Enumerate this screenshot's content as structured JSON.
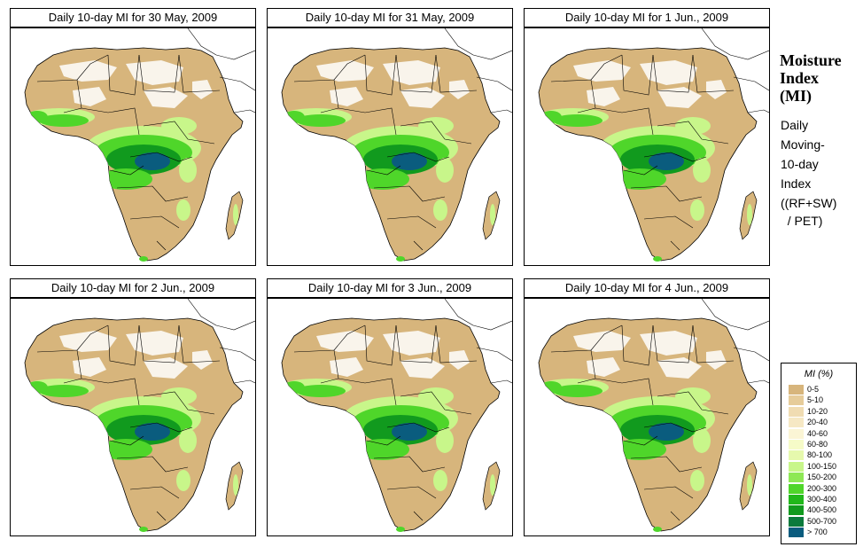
{
  "panels": [
    {
      "title": "Daily 10-day MI for  30 May, 2009"
    },
    {
      "title": "Daily 10-day MI for  31 May, 2009"
    },
    {
      "title": "Daily 10-day MI for  1 Jun., 2009"
    },
    {
      "title": "Daily 10-day MI for  2 Jun., 2009"
    },
    {
      "title": "Daily 10-day MI for  3 Jun., 2009"
    },
    {
      "title": "Daily 10-day MI for  4 Jun., 2009"
    }
  ],
  "side": {
    "title_lines": [
      "Moisture",
      "Index",
      "(MI)"
    ],
    "desc_lines": [
      "Daily",
      "Moving-",
      "10-day",
      "Index"
    ],
    "formula_lines": [
      "((RF+SW)",
      "  / PET)"
    ]
  },
  "legend": {
    "title": "MI (%)",
    "items": [
      {
        "label": "0-5",
        "color": "#d7b57c"
      },
      {
        "label": "5-10",
        "color": "#e6cc9a"
      },
      {
        "label": "10-20",
        "color": "#f0dcb2"
      },
      {
        "label": "20-40",
        "color": "#f6e8c4"
      },
      {
        "label": "40-60",
        "color": "#fbf5d5"
      },
      {
        "label": "60-80",
        "color": "#f6fbc8"
      },
      {
        "label": "80-100",
        "color": "#e6f9ad"
      },
      {
        "label": "100-150",
        "color": "#c8f68a"
      },
      {
        "label": "150-200",
        "color": "#8ee855"
      },
      {
        "label": "200-300",
        "color": "#4fd62a"
      },
      {
        "label": "300-400",
        "color": "#20b81a"
      },
      {
        "label": "400-500",
        "color": "#119a1e"
      },
      {
        "label": "500-700",
        "color": "#0b7a3c"
      },
      {
        "label": "> 700",
        "color": "#0a5c7e"
      }
    ]
  },
  "map_colors": {
    "land_dry": "#d7b57c",
    "desert_white": "#ffffff",
    "ocean": "#ffffff",
    "green_light": "#c8f68a",
    "green_mid": "#4fd62a",
    "green_dark": "#119a1e",
    "blue_core": "#0a5c7e"
  }
}
